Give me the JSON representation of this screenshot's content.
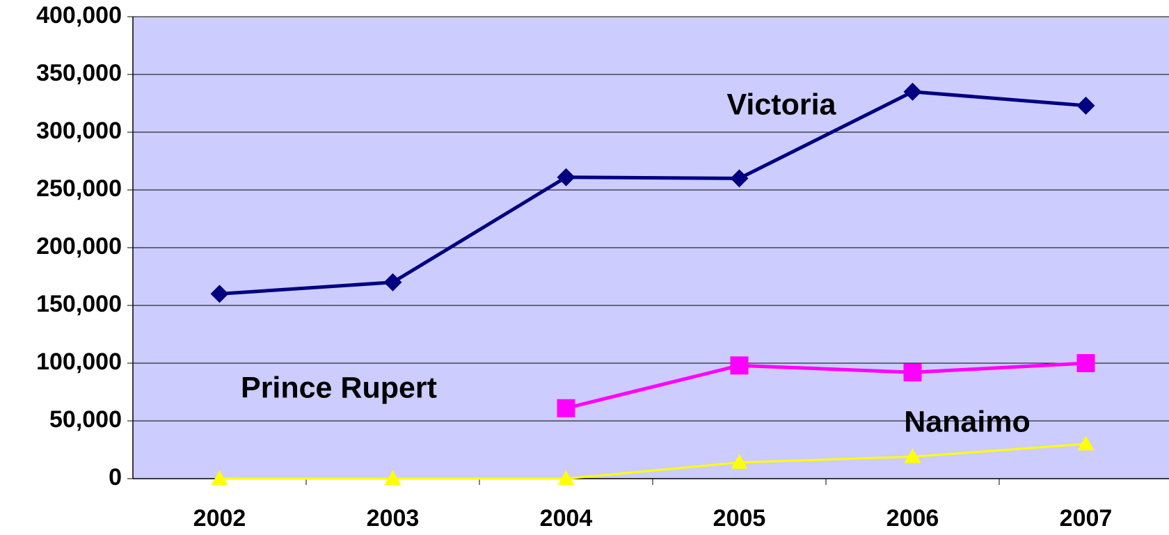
{
  "chart_data": {
    "type": "line",
    "categories": [
      "2002",
      "2003",
      "2004",
      "2005",
      "2006",
      "2007"
    ],
    "series": [
      {
        "name": "Victoria",
        "color": "#000080",
        "marker": "diamond",
        "values": [
          160000,
          170000,
          261000,
          260000,
          335000,
          323000
        ]
      },
      {
        "name": "Prince Rupert",
        "color": "#ff00ff",
        "marker": "square",
        "values": [
          null,
          null,
          61000,
          98000,
          92000,
          100000
        ]
      },
      {
        "name": "Nanaimo",
        "color": "#ffff00",
        "marker": "triangle",
        "values": [
          0,
          0,
          0,
          14000,
          19000,
          30000
        ]
      }
    ],
    "ylim": [
      0,
      400000
    ],
    "yticks": [
      {
        "value": 0,
        "label": "0"
      },
      {
        "value": 50000,
        "label": "50,000"
      },
      {
        "value": 100000,
        "label": "100,000"
      },
      {
        "value": 150000,
        "label": "150,000"
      },
      {
        "value": 200000,
        "label": "200,000"
      },
      {
        "value": 250000,
        "label": "250,000"
      },
      {
        "value": 300000,
        "label": "300,000"
      },
      {
        "value": 350000,
        "label": "350,000"
      },
      {
        "value": 400000,
        "label": "400,000"
      }
    ],
    "grid": true,
    "plot_background": "#ccccff",
    "annotations": [
      "Victoria",
      "Prince Rupert",
      "Nanaimo"
    ]
  }
}
